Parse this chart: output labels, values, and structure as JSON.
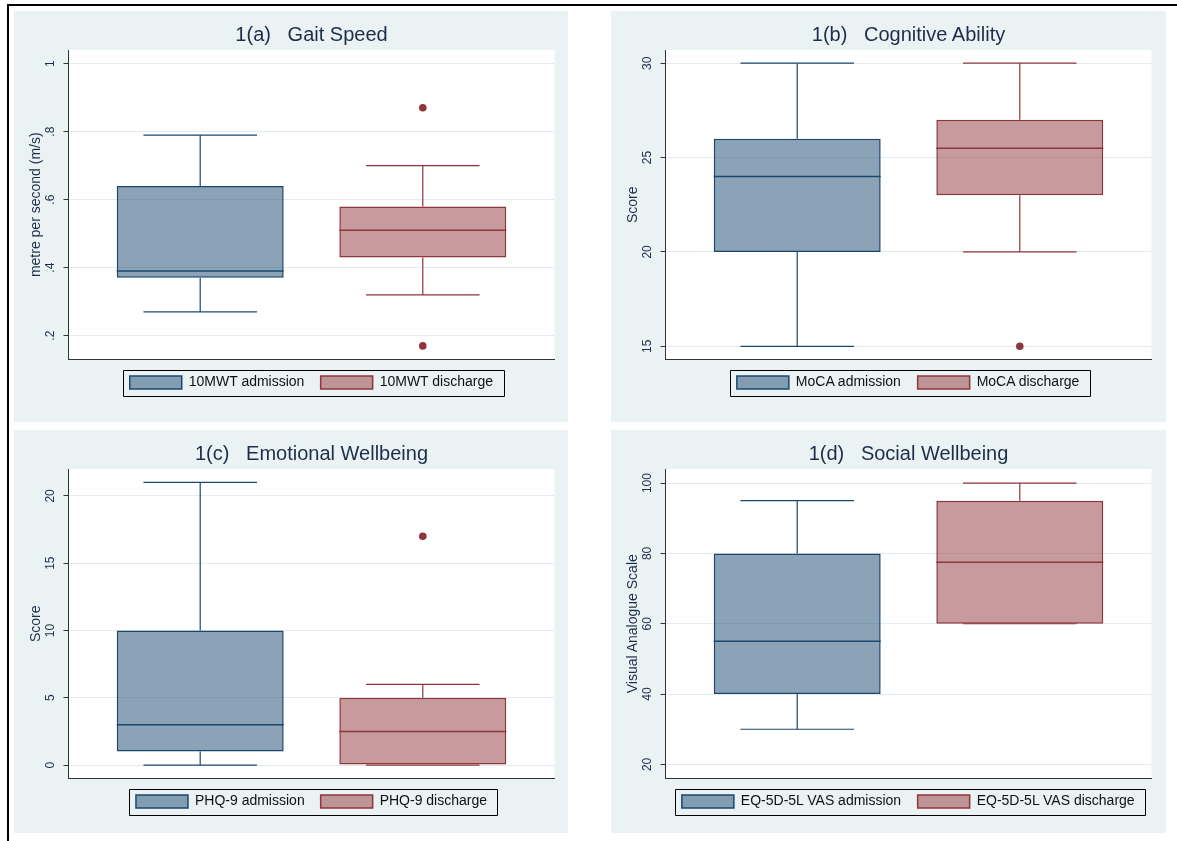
{
  "chart_data": [
    {
      "type": "box",
      "title": "1(a)   Gait Speed",
      "ylabel": "metre per second (m/s)",
      "categories": [
        null
      ],
      "series": [
        {
          "name": "10MWT admission",
          "color": "#1a476f",
          "boxes": [
            {
              "low": 0.27,
              "q1": 0.37,
              "median": 0.39,
              "q3": 0.64,
              "high": 0.79
            }
          ]
        },
        {
          "name": "10MWT discharge",
          "color": "#90353b",
          "boxes": [
            {
              "low": 0.32,
              "q1": 0.43,
              "median": 0.51,
              "q3": 0.58,
              "high": 0.7,
              "outliers": [
                0.87,
                0.17
              ]
            }
          ]
        }
      ],
      "ylim": [
        0.13,
        1.04
      ],
      "yticks": [
        {
          "value": 0.2,
          "label": ".2"
        },
        {
          "value": 0.4,
          "label": ".4"
        },
        {
          "value": 0.6,
          "label": ".6"
        },
        {
          "value": 0.8,
          "label": ".8"
        },
        1
      ],
      "grid": "y",
      "legend": "bottom",
      "tick_labels": "y"
    },
    {
      "type": "box",
      "title": "1(b)   Cognitive Ability",
      "ylabel": "Score",
      "categories": [
        null
      ],
      "series": [
        {
          "name": "MoCA admission",
          "color": "#1a476f",
          "boxes": [
            {
              "low": 15,
              "q1": 20,
              "median": 24,
              "q3": 26,
              "high": 30
            }
          ]
        },
        {
          "name": "MoCA discharge",
          "color": "#90353b",
          "boxes": [
            {
              "low": 20,
              "q1": 23,
              "median": 25.5,
              "q3": 27,
              "high": 30,
              "outliers": [
                15
              ]
            }
          ]
        }
      ],
      "ylim": [
        14.3,
        30.7
      ],
      "yticks": [
        15,
        20,
        25,
        30
      ],
      "grid": "y",
      "legend": "bottom",
      "tick_labels": "y"
    },
    {
      "type": "box",
      "title": "1(c)   Emotional Wellbeing",
      "ylabel": "Score",
      "categories": [
        null
      ],
      "series": [
        {
          "name": "PHQ-9 admission",
          "color": "#1a476f",
          "boxes": [
            {
              "low": 0,
              "q1": 1,
              "median": 3,
              "q3": 10,
              "high": 21
            }
          ]
        },
        {
          "name": "PHQ-9 discharge",
          "color": "#90353b",
          "boxes": [
            {
              "low": 0,
              "q1": 0,
              "median": 2.5,
              "q3": 5,
              "high": 6,
              "outliers": [
                17
              ]
            }
          ]
        }
      ],
      "ylim": [
        -1,
        22
      ],
      "yticks": [
        0,
        5,
        10,
        15,
        20
      ],
      "grid": "y",
      "legend": "bottom",
      "tick_labels": "y"
    },
    {
      "type": "box",
      "title": "1(d)   Social Wellbeing",
      "ylabel": "Visual Analogue Scale",
      "categories": [
        null
      ],
      "series": [
        {
          "name": "EQ-5D-5L VAS admission",
          "color": "#1a476f",
          "boxes": [
            {
              "low": 30,
              "q1": 40,
              "median": 55,
              "q3": 80,
              "high": 95
            }
          ]
        },
        {
          "name": "EQ-5D-5L VAS discharge",
          "color": "#90353b",
          "boxes": [
            {
              "low": 60,
              "q1": 60,
              "median": 77.5,
              "q3": 95,
              "high": 100
            }
          ]
        }
      ],
      "ylim": [
        16,
        104
      ],
      "yticks": [
        20,
        40,
        60,
        80,
        100
      ],
      "grid": "y",
      "legend": "bottom",
      "tick_labels": "y"
    }
  ]
}
